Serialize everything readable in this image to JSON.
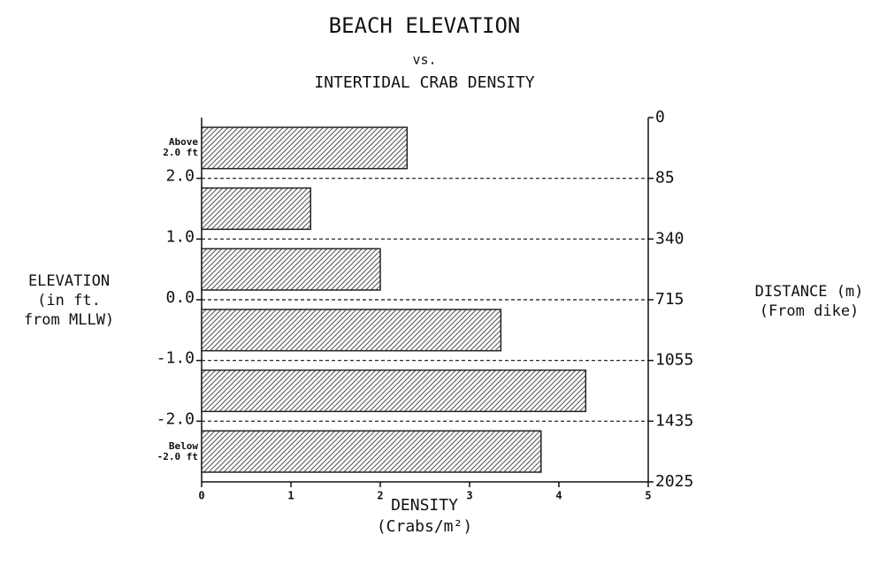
{
  "chart_data": {
    "type": "bar",
    "orientation": "horizontal",
    "title": "BEACH ELEVATION",
    "subtitle": [
      "vs.",
      "INTERTIDAL CRAB DENSITY"
    ],
    "categories": [
      "Above 2.0 ft",
      null,
      null,
      null,
      null,
      "Below -2.0 ft"
    ],
    "values": [
      2.3,
      1.22,
      2.0,
      3.35,
      4.3,
      3.8
    ],
    "color": "#222222",
    "xlim": [
      0,
      5
    ],
    "xticks": [
      0,
      1,
      2,
      3,
      4,
      5
    ],
    "xlabel": [
      "DENSITY",
      "(Crabs/m²)"
    ],
    "ylabel": [
      "ELEVATION",
      "(in ft.",
      "from MLLW)"
    ],
    "y_boundary_labels": [
      {
        "value": 2,
        "label": "2.0"
      },
      {
        "value": 1,
        "label": "1.0"
      },
      {
        "value": 0,
        "label": "0.0"
      },
      {
        "value": -1,
        "label": "-1.0"
      },
      {
        "value": -2,
        "label": "-2.0"
      }
    ],
    "y2label": [
      "DISTANCE (m)",
      "(From dike)"
    ],
    "y2_boundary_labels": [
      0,
      85,
      340,
      715,
      1055,
      1435,
      2025
    ]
  }
}
